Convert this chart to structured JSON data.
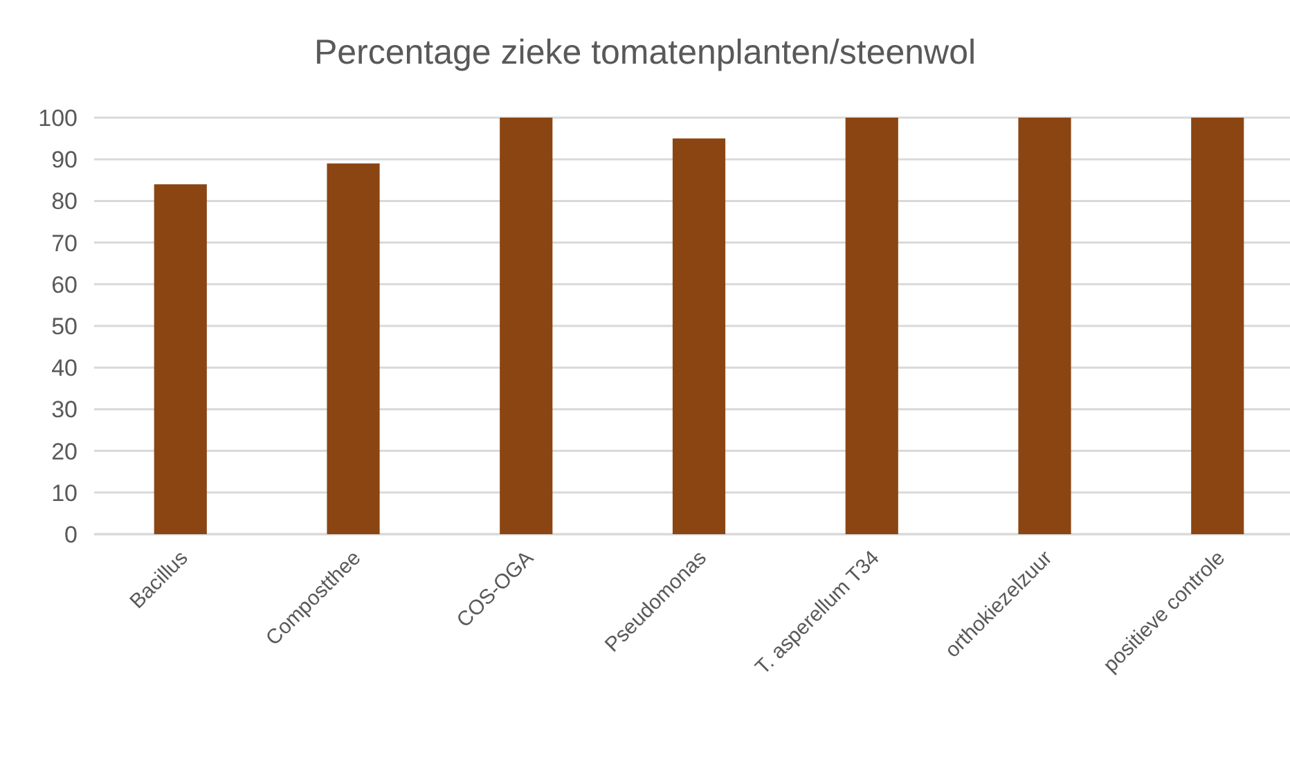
{
  "chart_data": {
    "type": "bar",
    "title": "Percentage zieke tomatenplanten/steenwol",
    "categories": [
      "Bacillus",
      "Compostthee",
      "COS-OGA",
      "Pseudomonas",
      "T. asperellum T34",
      "orthokiezelzuur",
      "positieve controle"
    ],
    "values": [
      84,
      89,
      100,
      95,
      100,
      100,
      100
    ],
    "color": "#8b4513",
    "ylim": [
      0,
      100
    ],
    "yticks": [
      0,
      10,
      20,
      30,
      40,
      50,
      60,
      70,
      80,
      90,
      100
    ],
    "grid": "y"
  }
}
